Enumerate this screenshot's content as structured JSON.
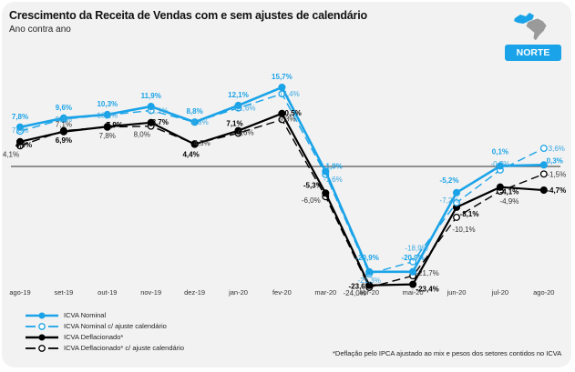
{
  "header": {
    "title": "Crescimento da Receita de Vendas com e sem ajustes de calendário",
    "subtitle": "Ano contra ano",
    "region": "NORTE",
    "region_icon": "brazil-map-icon"
  },
  "colors": {
    "nominal": "#1aa3e8",
    "deflated": "#000000",
    "zero_line": "#555555",
    "label_blue": "#1aa3e8",
    "label_blue_light": "#3aa8e0"
  },
  "footnote": "*Deflação pelo IPCA ajustado ao mix e pesos dos setores contidos no ICVA",
  "chart_data": {
    "type": "line",
    "title": "Crescimento da Receita de Vendas com e sem ajustes de calendário",
    "subtitle": "Ano contra ano",
    "x": [
      "ago-19",
      "set-19",
      "out-19",
      "nov-19",
      "dez-19",
      "jan-20",
      "fev-20",
      "mar-20",
      "abr-20",
      "mai-20",
      "jun-20",
      "jul-20",
      "ago-20"
    ],
    "ylim": [
      -24,
      15.7
    ],
    "zero_line": true,
    "grid": false,
    "legend_position": "bottom-left",
    "series": [
      {
        "name": "ICVA Nominal",
        "style": "solid-filled",
        "values": [
          7.8,
          9.6,
          10.3,
          11.9,
          8.8,
          12.1,
          15.7,
          -1.0,
          -20.9,
          -20.9,
          -5.2,
          0.1,
          0.3
        ],
        "labels": [
          "7,8%",
          "9,6%",
          "10,3%",
          "11,9%",
          "8,8%",
          "12,1%",
          "15,7%",
          "-1,0%",
          "-20,9%",
          "-20,9%",
          "-5,2%",
          "0,1%",
          "0,3%"
        ]
      },
      {
        "name": "ICVA Nominal c/ ajuste calendário",
        "style": "dashed-open",
        "values": [
          7.0,
          9.4,
          10.2,
          11.1,
          8.8,
          11.6,
          14.4,
          -1.6,
          -21.3,
          -18.9,
          -7.2,
          -0.7,
          3.6
        ],
        "labels": [
          "7,0%",
          "9,4%",
          "10,2%",
          "11,1%",
          "8,8%",
          "11,6%",
          "14,4%",
          "-1,6%",
          "-21,3%",
          "-18,9%",
          "-7,2%",
          "-0,7%",
          "3,6%"
        ]
      },
      {
        "name": "ICVA Deflacionado*",
        "style": "solid-filled",
        "values": [
          4.9,
          6.9,
          7.9,
          8.7,
          4.4,
          7.1,
          10.5,
          -5.3,
          -23.6,
          -23.4,
          -8.1,
          -4.1,
          -4.7
        ],
        "labels": [
          "4,9%",
          "6,9%",
          "7,9%",
          "8,7%",
          "4,4%",
          "7,1%",
          "10,5%",
          "-5,3%",
          "-23,6%",
          "-23,4%",
          "-8,1%",
          "-4,1%",
          "-4,7%"
        ]
      },
      {
        "name": "ICVA Deflacionado* c/ ajuste calendário",
        "style": "dashed-open",
        "values": [
          4.1,
          7.1,
          7.8,
          8.0,
          4.5,
          6.6,
          9.3,
          -6.0,
          -24.0,
          -21.7,
          -10.1,
          -4.9,
          -1.5
        ],
        "labels": [
          "4,1%",
          "7,1%",
          "7,8%",
          "8,0%",
          "4,5%",
          "6,6%",
          "9,3%",
          "-6,0%",
          "-24,0%",
          "-21,7%",
          "-10,1%",
          "-4,9%",
          "-1,5%"
        ]
      }
    ]
  }
}
